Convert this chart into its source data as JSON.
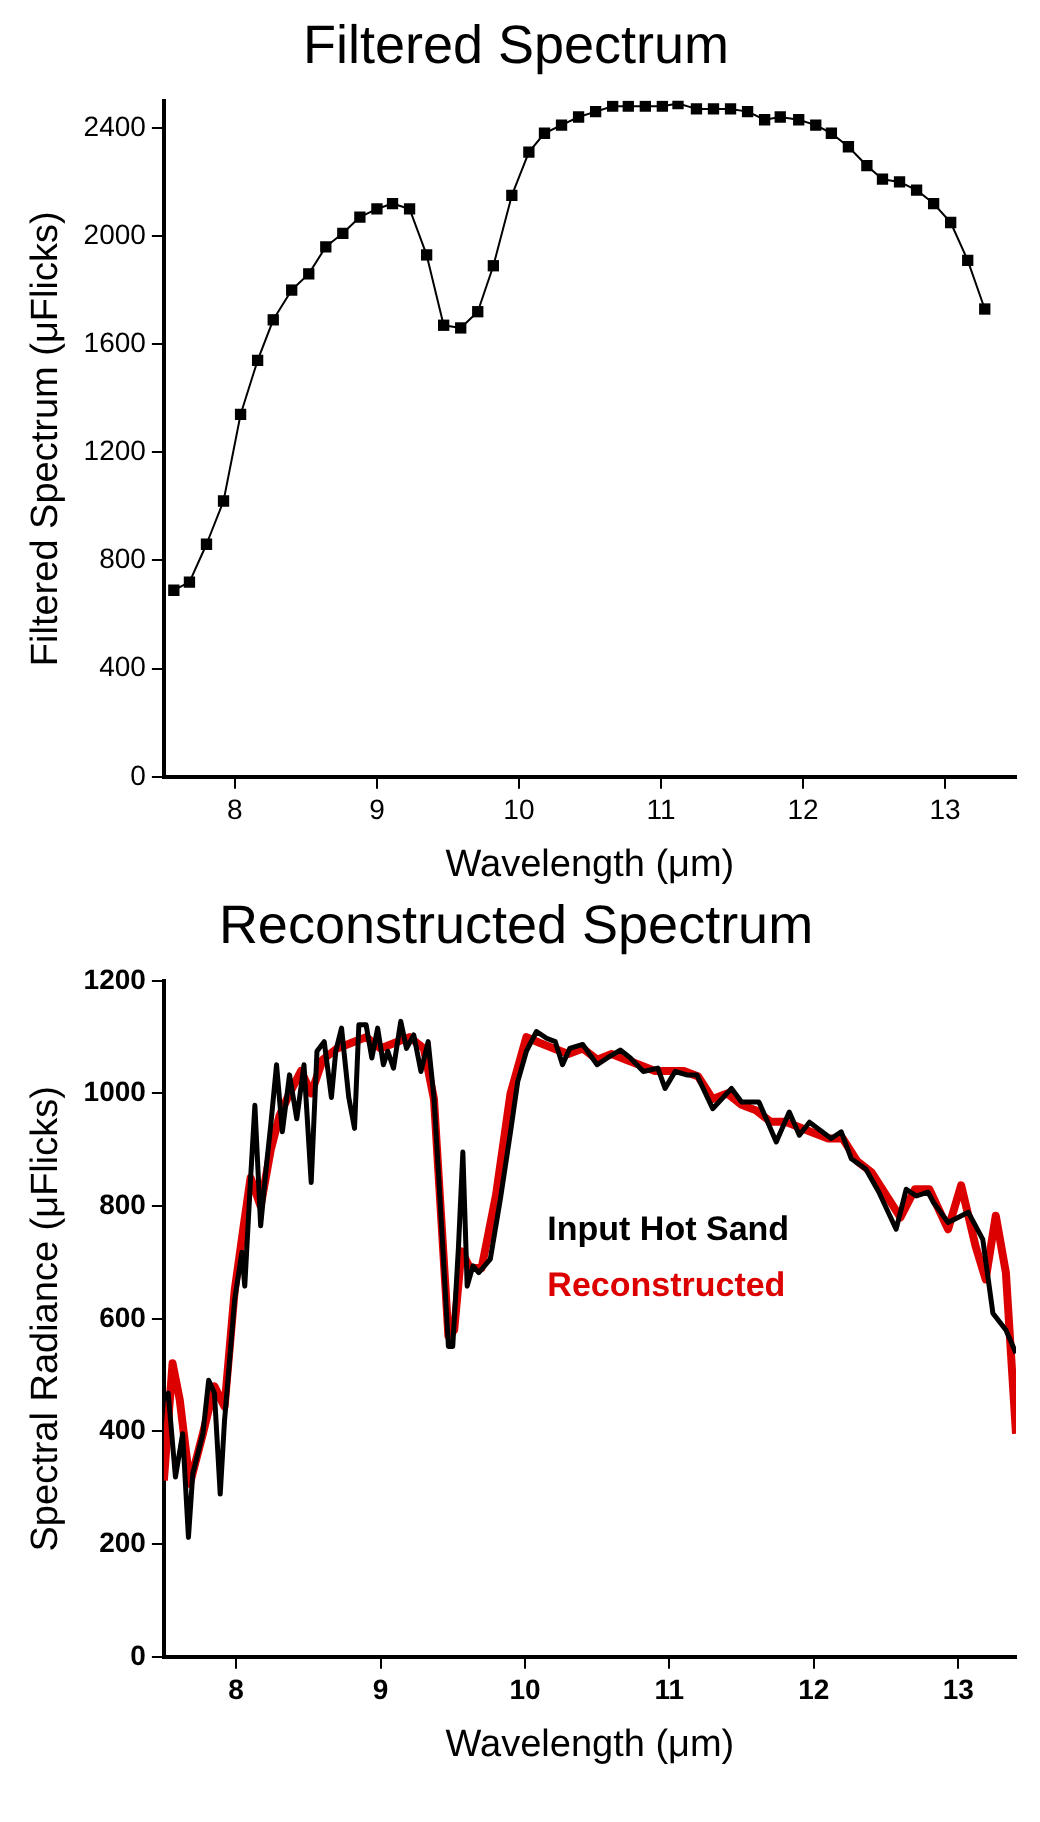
{
  "chart_data": [
    {
      "type": "line",
      "title": "Filtered Spectrum",
      "xlabel": "Wavelength (μm)",
      "ylabel": "Filtered Spectrum (μFlicks)",
      "marker": "square",
      "grid": false,
      "legend": false,
      "xlim": [
        7.5,
        13.5
      ],
      "xticks": [
        8,
        9,
        10,
        11,
        12,
        13
      ],
      "ylim": [
        0,
        2500
      ],
      "yticks": [
        0,
        400,
        800,
        1200,
        1600,
        2000,
        2400
      ],
      "series": [
        {
          "color": "#000000",
          "x": [
            7.57,
            7.68,
            7.8,
            7.92,
            8.04,
            8.16,
            8.27,
            8.4,
            8.52,
            8.64,
            8.76,
            8.88,
            9.0,
            9.11,
            9.23,
            9.35,
            9.47,
            9.59,
            9.71,
            9.82,
            9.95,
            10.07,
            10.18,
            10.3,
            10.42,
            10.54,
            10.66,
            10.77,
            10.89,
            11.01,
            11.12,
            11.25,
            11.37,
            11.49,
            11.61,
            11.73,
            11.84,
            11.97,
            12.09,
            12.2,
            12.32,
            12.45,
            12.56,
            12.68,
            12.8,
            12.92,
            13.04,
            13.16,
            13.28
          ],
          "values": [
            690,
            720,
            860,
            1020,
            1340,
            1540,
            1690,
            1800,
            1860,
            1960,
            2010,
            2070,
            2100,
            2120,
            2100,
            1930,
            1670,
            1660,
            1720,
            1890,
            2150,
            2310,
            2380,
            2410,
            2440,
            2460,
            2480,
            2480,
            2480,
            2480,
            2490,
            2470,
            2470,
            2470,
            2460,
            2430,
            2440,
            2430,
            2410,
            2380,
            2330,
            2260,
            2210,
            2200,
            2170,
            2120,
            2050,
            1910,
            1730
          ]
        }
      ]
    },
    {
      "type": "line",
      "title": "Reconstructed Spectrum",
      "xlabel": "Wavelength (μm)",
      "ylabel": "Spectral Radiance (μFlicks)",
      "marker": "none",
      "grid": false,
      "legend": "right",
      "xlim": [
        7.5,
        13.4
      ],
      "xticks": [
        8,
        9,
        10,
        11,
        12,
        13
      ],
      "ylim": [
        0,
        1200
      ],
      "yticks": [
        0,
        200,
        400,
        600,
        800,
        1000,
        1200
      ],
      "series": [
        {
          "name": "Reconstructed",
          "color": "#dd0000",
          "x": [
            7.5,
            7.56,
            7.61,
            7.68,
            7.77,
            7.85,
            7.92,
            7.99,
            8.05,
            8.1,
            8.17,
            8.24,
            8.3,
            8.37,
            8.45,
            8.52,
            8.6,
            8.7,
            8.8,
            8.9,
            9.0,
            9.1,
            9.2,
            9.3,
            9.37,
            9.42,
            9.47,
            9.51,
            9.56,
            9.62,
            9.7,
            9.8,
            9.9,
            10.01,
            10.1,
            10.2,
            10.3,
            10.4,
            10.5,
            10.6,
            10.7,
            10.8,
            10.9,
            11.0,
            11.1,
            11.2,
            11.3,
            11.4,
            11.5,
            11.6,
            11.7,
            11.8,
            11.9,
            12.0,
            12.1,
            12.2,
            12.3,
            12.4,
            12.5,
            12.6,
            12.7,
            12.8,
            12.93,
            13.02,
            13.12,
            13.19,
            13.26,
            13.33,
            13.4
          ],
          "values": [
            313,
            521,
            456,
            307,
            396,
            480,
            444,
            650,
            760,
            850,
            800,
            900,
            960,
            1000,
            1040,
            1000,
            1060,
            1080,
            1090,
            1100,
            1080,
            1090,
            1100,
            1080,
            990,
            780,
            570,
            580,
            720,
            690,
            690,
            820,
            1000,
            1100,
            1090,
            1080,
            1070,
            1080,
            1060,
            1070,
            1060,
            1050,
            1040,
            1040,
            1040,
            1030,
            990,
            1000,
            980,
            970,
            950,
            950,
            940,
            930,
            920,
            920,
            880,
            860,
            820,
            780,
            830,
            830,
            759,
            837,
            729,
            670,
            783,
            682,
            396
          ]
        },
        {
          "name": "Input Hot Sand",
          "color": "#000000",
          "x": [
            7.5,
            7.53,
            7.58,
            7.63,
            7.67,
            7.7,
            7.77,
            7.81,
            7.85,
            7.89,
            7.92,
            7.99,
            8.04,
            8.06,
            8.1,
            8.13,
            8.17,
            8.21,
            8.24,
            8.28,
            8.32,
            8.37,
            8.42,
            8.47,
            8.52,
            8.56,
            8.61,
            8.66,
            8.69,
            8.73,
            8.78,
            8.82,
            8.85,
            8.9,
            8.94,
            8.98,
            9.02,
            9.05,
            9.09,
            9.14,
            9.18,
            9.23,
            9.28,
            9.33,
            9.37,
            9.42,
            9.47,
            9.5,
            9.54,
            9.57,
            9.6,
            9.64,
            9.68,
            9.76,
            9.83,
            9.9,
            9.95,
            10.01,
            10.08,
            10.15,
            10.21,
            10.26,
            10.31,
            10.4,
            10.5,
            10.57,
            10.66,
            10.73,
            10.82,
            10.92,
            10.97,
            11.04,
            11.12,
            11.19,
            11.3,
            11.43,
            11.5,
            11.62,
            11.74,
            11.83,
            11.9,
            11.97,
            12.12,
            12.19,
            12.26,
            12.36,
            12.45,
            12.57,
            12.64,
            12.71,
            12.79,
            12.83,
            12.93,
            13.07,
            13.17,
            13.24,
            13.33,
            13.4
          ],
          "values": [
            456,
            468,
            319,
            396,
            212,
            325,
            396,
            491,
            468,
            289,
            420,
            634,
            718,
            658,
            848,
            979,
            765,
            872,
            944,
            1051,
            932,
            1033,
            955,
            1051,
            842,
            1075,
            1092,
            993,
            1075,
            1116,
            993,
            938,
            1122,
            1122,
            1063,
            1116,
            1051,
            1075,
            1045,
            1128,
            1080,
            1104,
            1039,
            1092,
            993,
            777,
            551,
            551,
            729,
            896,
            658,
            694,
            682,
            706,
            813,
            932,
            1021,
            1075,
            1110,
            1098,
            1092,
            1051,
            1080,
            1087,
            1051,
            1063,
            1077,
            1063,
            1039,
            1045,
            1009,
            1039,
            1033,
            1033,
            973,
            1009,
            985,
            985,
            914,
            967,
            926,
            949,
            920,
            932,
            884,
            866,
            825,
            759,
            830,
            818,
            825,
            806,
            771,
            789,
            741,
            610,
            580,
            539
          ]
        }
      ]
    }
  ]
}
